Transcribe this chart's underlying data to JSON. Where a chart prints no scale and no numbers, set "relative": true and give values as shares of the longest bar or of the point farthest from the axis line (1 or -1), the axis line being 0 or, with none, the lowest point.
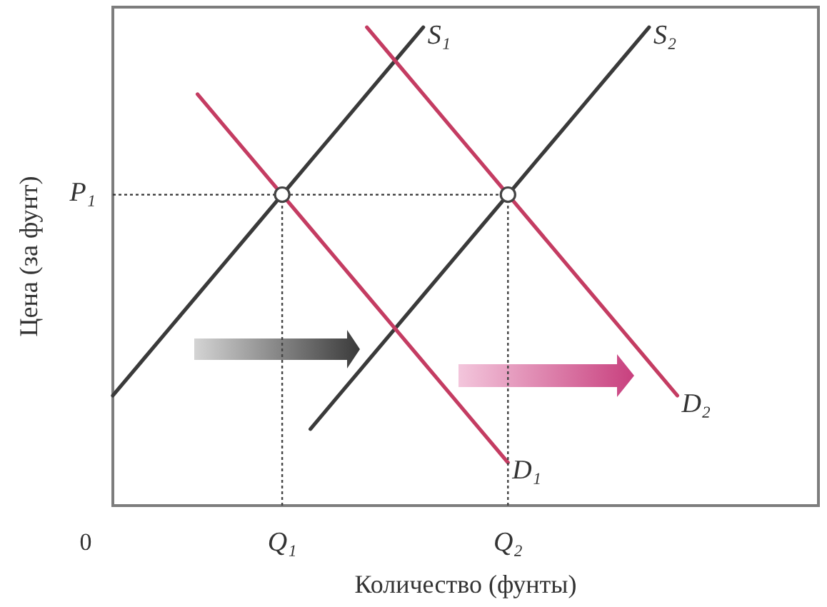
{
  "chart_data": {
    "type": "line",
    "xlabel": "Количество (фунты)",
    "ylabel": "Цена (за фунт)",
    "relative": true,
    "categories": [
      null,
      null,
      null,
      null,
      null,
      null,
      "Q₁",
      null,
      null,
      null,
      null,
      null,
      null,
      null,
      "Q₂",
      null,
      null,
      null,
      null,
      null,
      null,
      null,
      null,
      null,
      null,
      null
    ],
    "series": [
      {
        "name": "S₁",
        "color": "#3a3a3a",
        "values": [
          0.23,
          0.3,
          0.37,
          0.44,
          0.51,
          0.58,
          0.65,
          0.72,
          0.79,
          0.86,
          0.93,
          1,
          null,
          null,
          null,
          null,
          null,
          null,
          null,
          null,
          null,
          null,
          null,
          null,
          null,
          null
        ]
      },
      {
        "name": "S₂",
        "color": "#3a3a3a",
        "values": [
          null,
          null,
          null,
          null,
          null,
          null,
          null,
          0.16,
          0.23,
          0.3,
          0.37,
          0.44,
          0.51,
          0.58,
          0.65,
          0.72,
          0.79,
          0.86,
          0.93,
          1,
          null,
          null,
          null,
          null,
          null,
          null
        ]
      },
      {
        "name": "D₁",
        "color": "#c43c62",
        "values": [
          null,
          null,
          null,
          0.86,
          0.79,
          0.72,
          0.65,
          0.58,
          0.51,
          0.44,
          0.37,
          0.3,
          0.23,
          0.16,
          0.09,
          null,
          null,
          null,
          null,
          null,
          null,
          null,
          null,
          null,
          null,
          null
        ]
      },
      {
        "name": "D₂",
        "color": "#c43c62",
        "values": [
          null,
          null,
          null,
          null,
          null,
          null,
          null,
          null,
          null,
          1,
          0.93,
          0.86,
          0.79,
          0.72,
          0.65,
          0.58,
          0.51,
          0.44,
          0.37,
          0.3,
          0.23,
          null,
          null,
          null,
          null,
          null
        ]
      },
      {
        "type": "lollipop",
        "color": "#444444",
        "marker": "circle",
        "line_style": "dotted",
        "values": [
          null,
          null,
          null,
          null,
          null,
          null,
          0.65,
          null,
          null,
          null,
          null,
          null,
          null,
          null,
          0.65,
          null,
          null,
          null,
          null,
          null,
          null,
          null,
          null,
          null,
          null,
          null
        ]
      }
    ],
    "ref_lines": [
      {
        "axis": "y",
        "value": 0.65,
        "label": "P₁",
        "color": "#333333",
        "line_style": "dotted"
      }
    ],
    "annotations": [
      "0"
    ]
  }
}
